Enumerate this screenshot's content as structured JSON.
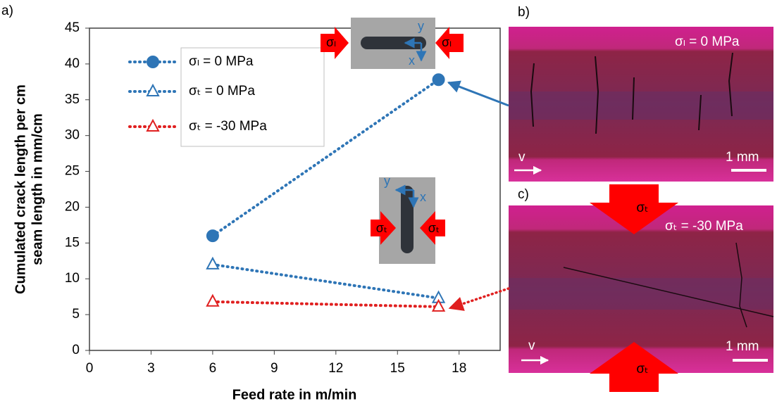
{
  "chart_data": {
    "type": "line",
    "panel_label": "a)",
    "xlabel": "Feed rate in m/min",
    "ylabel": [
      "Cumulated crack length per cm",
      "seam length in mm/cm"
    ],
    "x": [
      6,
      17
    ],
    "series": [
      {
        "name": "σₗ = 0 MPa",
        "color": "#2e75b6",
        "marker": "circle",
        "filled": true,
        "values": [
          16,
          37.8
        ]
      },
      {
        "name": "σₜ = 0 MPa",
        "color": "#2e75b6",
        "marker": "triangle",
        "filled": false,
        "values": [
          12,
          7.3
        ]
      },
      {
        "name": "σₜ = -30 MPa",
        "color": "#e02020",
        "marker": "triangle",
        "filled": false,
        "values": [
          6.8,
          6.1
        ]
      }
    ],
    "xlim": [
      0,
      20
    ],
    "xticks": [
      0,
      3,
      6,
      9,
      12,
      15,
      18
    ],
    "ylim": [
      0,
      45
    ],
    "yticks": [
      0,
      5,
      10,
      15,
      20,
      25,
      30,
      35,
      40,
      45
    ],
    "grid": false,
    "legend": "upper-left"
  },
  "insets": {
    "top": {
      "stress": "σₗ",
      "y": "y",
      "x": "x"
    },
    "bottom": {
      "stress": "σₜ",
      "y": "y",
      "x": "x"
    }
  },
  "panels": {
    "b": {
      "label": "b)",
      "stress": "σₗ = 0 MPa",
      "scale": "1 mm",
      "velocity": "v"
    },
    "c": {
      "label": "c)",
      "stress": "σₜ = -30 MPa",
      "arrow": "σₜ",
      "scale": "1 mm",
      "velocity": "v"
    }
  }
}
